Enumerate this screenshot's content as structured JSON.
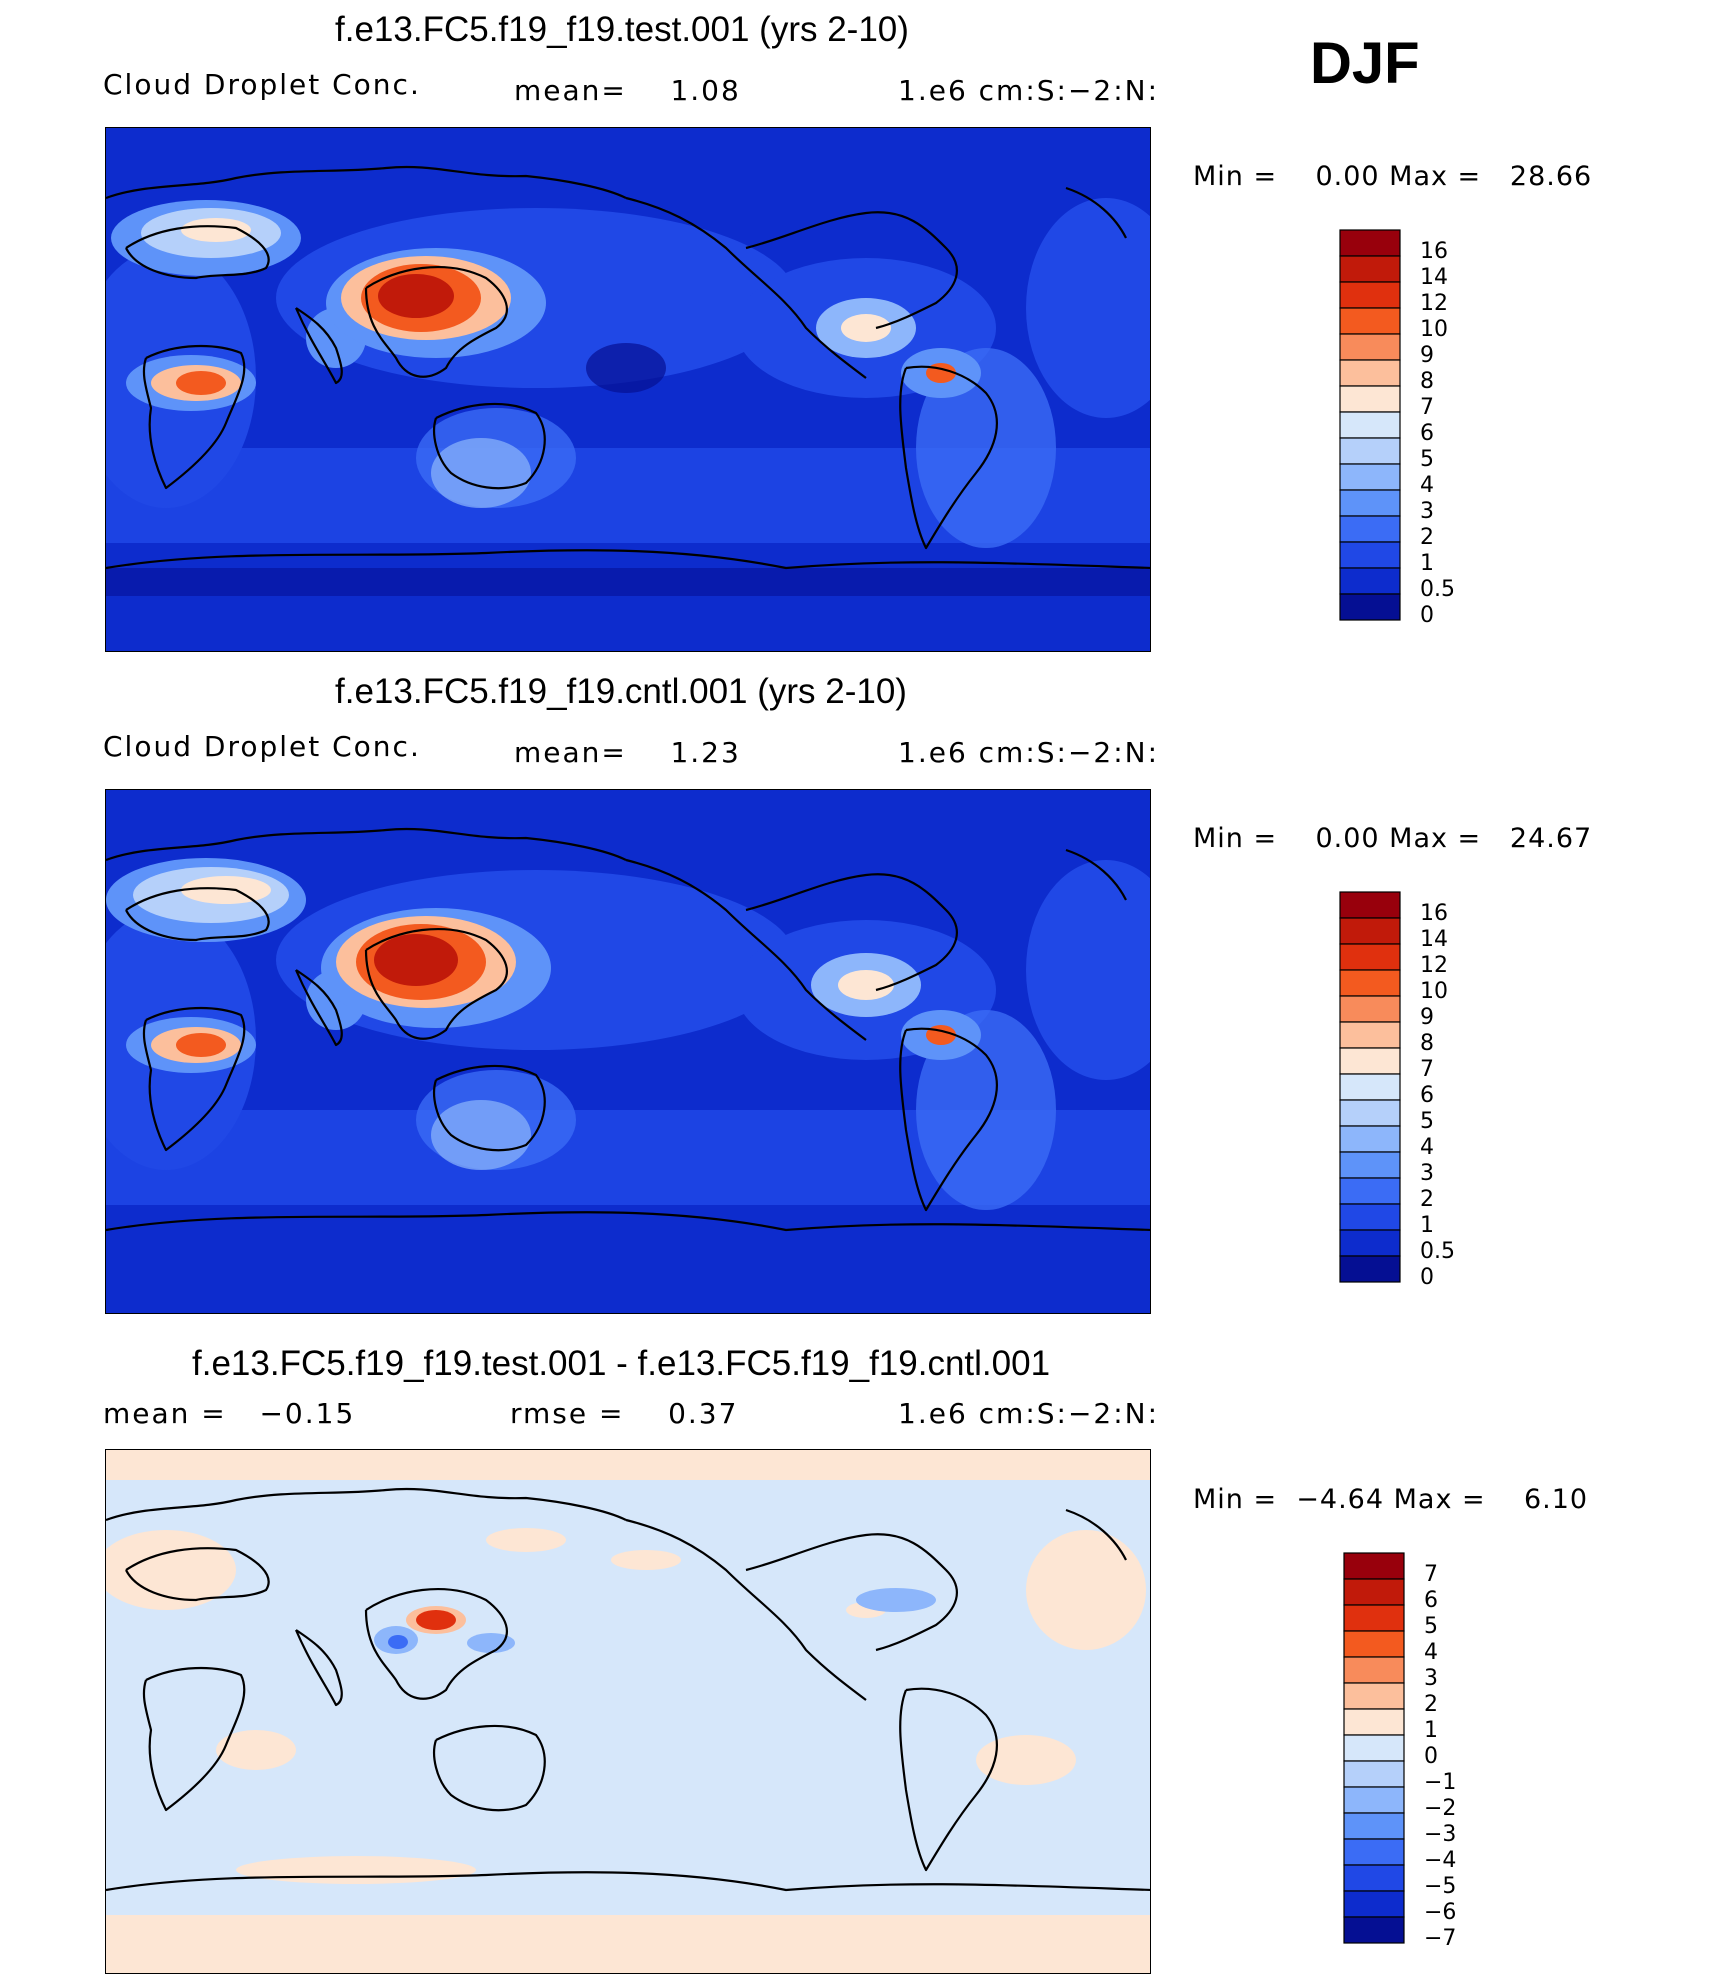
{
  "season": "DJF",
  "panels": [
    {
      "title": "f.e13.FC5.f19_f19.test.001 (yrs 2-10)",
      "sub_left": "Cloud Droplet Conc.",
      "sub_mid": "mean=    1.08",
      "sub_right": "1.e6 cm:S:−2:N:",
      "minmax": "Min =    0.00 Max =   28.66",
      "colorbar_labels": [
        "16",
        "14",
        "12",
        "10",
        "9",
        "8",
        "7",
        "6",
        "5",
        "4",
        "3",
        "2",
        "1",
        "0.5",
        "0"
      ],
      "colorbar_colors": [
        "#98000c",
        "#c11a0a",
        "#e0300e",
        "#f35a1f",
        "#f88b5b",
        "#fcbf9c",
        "#fde6d4",
        "#d6e7fa",
        "#b5d0fa",
        "#8db6fb",
        "#5e93f9",
        "#3b6cf5",
        "#2048e6",
        "#0d2ccd",
        "#050f93"
      ]
    },
    {
      "title": "f.e13.FC5.f19_f19.cntl.001 (yrs 2-10)",
      "sub_left": "Cloud Droplet Conc.",
      "sub_mid": "mean=    1.23",
      "sub_right": "1.e6 cm:S:−2:N:",
      "minmax": "Min =    0.00 Max =   24.67",
      "colorbar_labels": [
        "16",
        "14",
        "12",
        "10",
        "9",
        "8",
        "7",
        "6",
        "5",
        "4",
        "3",
        "2",
        "1",
        "0.5",
        "0"
      ],
      "colorbar_colors": [
        "#98000c",
        "#c11a0a",
        "#e0300e",
        "#f35a1f",
        "#f88b5b",
        "#fcbf9c",
        "#fde6d4",
        "#d6e7fa",
        "#b5d0fa",
        "#8db6fb",
        "#5e93f9",
        "#3b6cf5",
        "#2048e6",
        "#0d2ccd",
        "#050f93"
      ]
    },
    {
      "title": "f.e13.FC5.f19_f19.test.001 - f.e13.FC5.f19_f19.cntl.001",
      "sub_left": "mean =   −0.15",
      "sub_mid": "rmse =    0.37",
      "sub_right": "1.e6 cm:S:−2:N:",
      "minmax": "Min =  −4.64 Max =    6.10",
      "colorbar_labels": [
        "7",
        "6",
        "5",
        "4",
        "3",
        "2",
        "1",
        "0",
        "−1",
        "−2",
        "−3",
        "−4",
        "−5",
        "−6",
        "−7"
      ],
      "colorbar_colors": [
        "#98000c",
        "#c11a0a",
        "#e0300e",
        "#f35a1f",
        "#f88b5b",
        "#fcbf9c",
        "#fde6d4",
        "#d6e7fa",
        "#b5d0fa",
        "#8db6fb",
        "#5e93f9",
        "#3b6cf5",
        "#2048e6",
        "#0d2ccd",
        "#050f93"
      ]
    }
  ]
}
